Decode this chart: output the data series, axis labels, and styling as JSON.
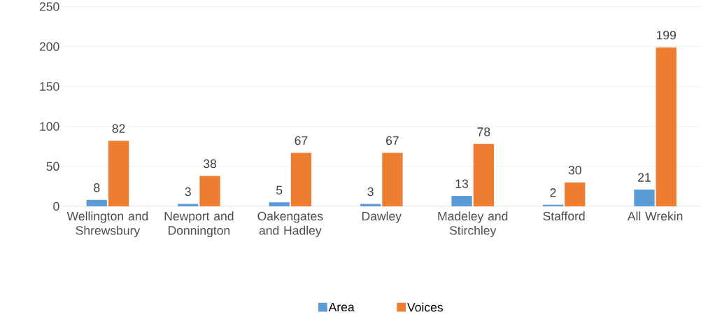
{
  "chart_data": {
    "type": "bar",
    "categories": [
      "Wellington and Shrewsbury",
      "Newport and Donnington",
      "Oakengates and Hadley",
      "Dawley",
      "Madeley and Stirchley",
      "Stafford",
      "All Wrekin"
    ],
    "series": [
      {
        "name": "Area",
        "color": "#5b9bd5",
        "values": [
          8,
          3,
          5,
          3,
          13,
          2,
          21
        ]
      },
      {
        "name": "Voices",
        "color": "#ed7d31",
        "values": [
          82,
          38,
          67,
          67,
          78,
          30,
          199
        ]
      }
    ],
    "ylim": [
      0,
      250
    ],
    "yticks": [
      0,
      50,
      100,
      150,
      200,
      250
    ],
    "grid": "y",
    "legend": "bottom",
    "data_labels": true
  }
}
